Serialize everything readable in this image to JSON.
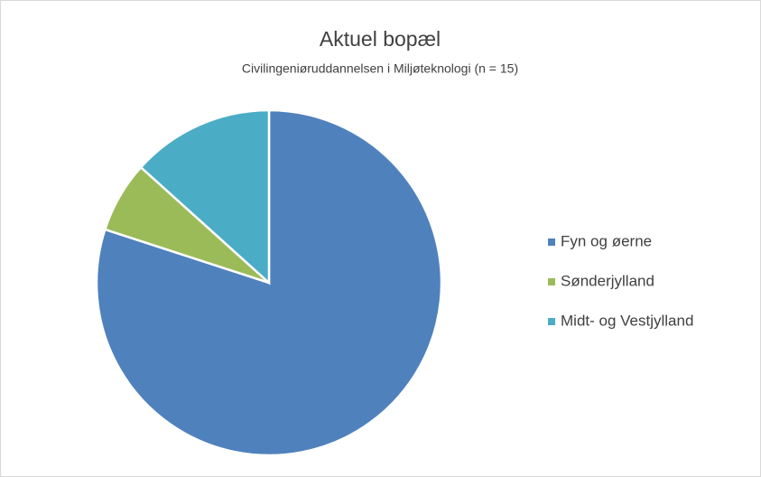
{
  "chart_data": {
    "type": "pie",
    "title": "Aktuel bopæl",
    "subtitle": "Civilingeniøruddannelsen i Miljøteknologi (n = 15)",
    "categories": [
      "Fyn og øerne",
      "Sønderjylland",
      "Midt- og Vestjylland"
    ],
    "values": [
      12,
      1,
      2
    ],
    "colors": [
      "#4f81bd",
      "#9bbb59",
      "#4bacc6"
    ],
    "legend": "right"
  }
}
